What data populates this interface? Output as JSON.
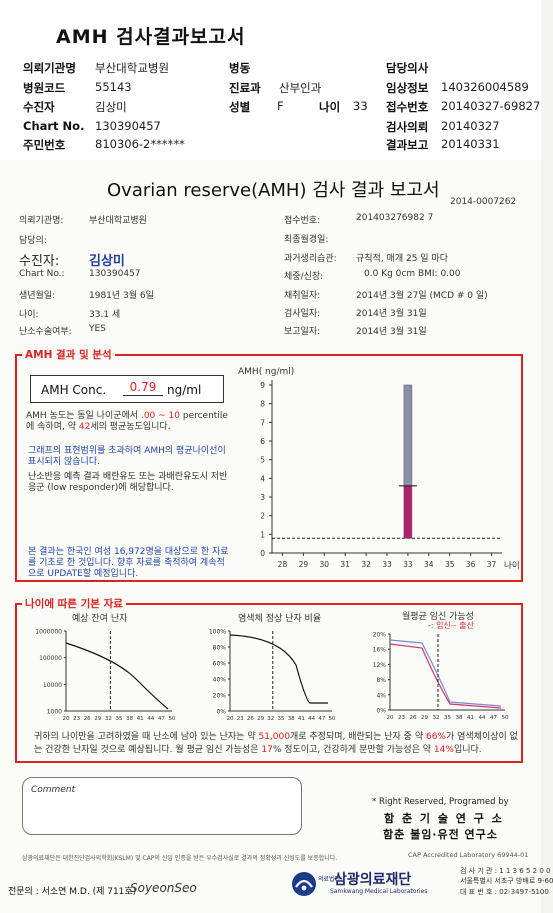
{
  "top": {
    "title": "AMH 검사결과보고서",
    "fields": [
      {
        "label": "의뢰기관명",
        "value": "부산대학교병원"
      },
      {
        "label": "병원코드",
        "value": "55143"
      },
      {
        "label": "수진자",
        "value": "김상미"
      },
      {
        "label": "Chart No.",
        "value": "130390457"
      },
      {
        "label": "주민번호",
        "value": "810306-2******"
      }
    ],
    "mid": [
      {
        "label": "병동",
        "value": ""
      },
      {
        "label": "진료과",
        "value": "산부인과"
      },
      {
        "label": "성별",
        "value": "F"
      }
    ],
    "age": {
      "label": "나이",
      "value": "33"
    },
    "right": [
      {
        "label": "담당의사",
        "value": ""
      },
      {
        "label": "임상정보",
        "value": "140326004589"
      },
      {
        "label": "접수번호",
        "value": "20140327-69827"
      },
      {
        "label": "검사의뢰",
        "value": "20140327"
      },
      {
        "label": "결과보고",
        "value": "20140331"
      }
    ]
  },
  "report": {
    "title": "Ovarian reserve(AMH) 검사 결과 보고서",
    "number": "2014-0007262",
    "left": [
      {
        "label": "의뢰기관명:",
        "value": "부산대학교병원"
      },
      {
        "label": "담당의:",
        "value": ""
      },
      {
        "label": "수진자:",
        "value": "김상미"
      },
      {
        "label": "Chart No.:",
        "value": "130390457"
      },
      {
        "label": "생년월일:",
        "value": "1981년 3월 6일"
      },
      {
        "label": "나이:",
        "value": "33.1 세"
      },
      {
        "label": "난소수술여부:",
        "value": "YES"
      }
    ],
    "right": [
      {
        "label": "접수번호:",
        "value": "201403276982 7"
      },
      {
        "label": "최종월경일:",
        "value": ""
      },
      {
        "label": "과거생리습관:",
        "value": "규칙적, 매개  25 일 마다"
      },
      {
        "label": "체중/신장:",
        "value": "0.0 Kg       0cm   BMI:   0.00"
      },
      {
        "label": "채취일자:",
        "value": "2014년 3월 27일   (MCD # 0 일)"
      },
      {
        "label": "검사일자:",
        "value": "2014년 3월 31일"
      },
      {
        "label": "보고일자:",
        "value": "2014년 3월 31일"
      }
    ]
  },
  "amh": {
    "section_title": "AMH 결과 및 분석",
    "conc_label": "AMH Conc.",
    "conc_value": "0.79",
    "conc_unit": "ng/ml",
    "para1_a": "AMH 농도는 동일 나이군에서",
    "para1_b": ".00 ~ 10",
    "para1_c": "percentile에 속하며, 약",
    "para1_d": "42",
    "para1_e": "세의 평균농도입니다.",
    "para2": "그래프의 표현범위를 초과하여 AMH의 평균나이선이 표시되지 않습니다.",
    "para3": "난소반응 예측 결과 배란유도 또는 과배란유도시 저반응군 (low responder)에 해당합니다.",
    "para4": "본 결과는 한국인 여성 16,972명을 대상으로 한 자료를 기초로 한 것입니다. 향후 자료를 축적하여 계속적으로 UPDATE할 예정입니다."
  },
  "chart_data": [
    {
      "type": "bar",
      "title": "AMH( ng/ml)",
      "xlabel": "나이",
      "x_ticks": [
        "28",
        "29",
        "30",
        "31",
        "32",
        "33",
        "33",
        "34",
        "35",
        "36",
        "37"
      ],
      "y_ticks": [
        "0",
        "1",
        "2",
        "3",
        "4",
        "5",
        "6",
        "7",
        "8",
        "9"
      ],
      "ylim": [
        0,
        9
      ],
      "reference_line": 0.79,
      "bars": [
        {
          "x_index": 6,
          "low": 3.6,
          "high": 9.0,
          "color": "#8d8fa6"
        },
        {
          "x_index": 6,
          "low": 0.79,
          "high": 3.6,
          "color": "#b0236a"
        }
      ],
      "marker_value": 3.6
    },
    {
      "type": "line",
      "title": "예상 잔여 난자",
      "y_ticks": [
        "1000000",
        "100000",
        "10000",
        "1000"
      ],
      "x_ticks": [
        "20",
        "23",
        "26",
        "29",
        "32",
        "35",
        "38",
        "41",
        "44",
        "47",
        "50"
      ]
    },
    {
      "type": "line",
      "title": "염색체 정상 난자 비율",
      "y_ticks": [
        "100%",
        "80%",
        "60%",
        "40%",
        "20%",
        "0%"
      ],
      "x_ticks": [
        "20",
        "23",
        "26",
        "29",
        "32",
        "35",
        "38",
        "41",
        "44",
        "47",
        "50"
      ]
    },
    {
      "type": "line",
      "title": "월평균 임신 가능성",
      "legend": "-: 임신-- 출산",
      "y_ticks": [
        "20%",
        "16%",
        "12%",
        "8%",
        "4%",
        "0%"
      ],
      "x_ticks": [
        "20",
        "23",
        "26",
        "29",
        "32",
        "35",
        "38",
        "41",
        "44",
        "47",
        "50"
      ]
    }
  ],
  "age_section": {
    "title": "나이에 따른 기본 자료",
    "summary_a": "귀하의 나이만을 고려하였을 때 난소에 남아 있는 난자는 약",
    "summary_b": "51,000",
    "summary_c": "개로 추정되며, 배란되는 난자 중",
    "summary_d": "약",
    "summary_e": "66%",
    "summary_f": "가 염색체이상이 없는 건강한 난자일 것으로 예상됩니다. 월 평균 임신 가능성은",
    "summary_g": "17",
    "summary_h": "% 정도이고,",
    "summary_i": "건강하게 분만할 가능성은 약",
    "summary_j": "14%",
    "summary_k": "입니다."
  },
  "footer": {
    "comment_label": "Comment",
    "rights": "* Right Reserved, Programed by",
    "inst1": "함 춘 기 술 연 구 소",
    "inst2": "함춘 불임·유전 연구소",
    "cert": "삼광의료재단은 대한진단검사의학회(KSLM) 및 CAP의 신임 인증을 받은 우수검사실로 결과의 정확성과 신빙도를 보증합니다.",
    "cap": "CAP  Accredited  Laboratory  69944-01",
    "doctor_label": "전문의 : 서소연 M.D. (제 711호)",
    "signature": "SoyeonSeo",
    "brand_tag": "의료법인",
    "brand": "삼광의료재단",
    "brand_en": "Samkwang Medical Laboratories",
    "addr1": "검 사 기 관 : 1 1 3 6 5 2 0 0",
    "addr2": "서울특별시 서초구 방배로 9-60",
    "addr3": "대 표 번 호 : 02-3497-5100"
  }
}
